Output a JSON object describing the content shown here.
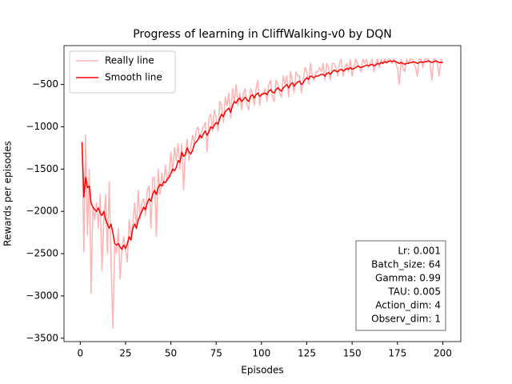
{
  "chart_data": {
    "type": "line",
    "title": "Progress of learning in CliffWalking-v0 by DQN",
    "x_label": "Episodes",
    "y_label": "Rewards per episodes",
    "xlim": [
      -8.95,
      209.95
    ],
    "ylim": [
      -3540,
      -40
    ],
    "xticks": [
      0,
      25,
      50,
      75,
      100,
      125,
      150,
      175,
      200
    ],
    "yticks": [
      {
        "value": -3500,
        "label": "−3500"
      },
      {
        "value": -3000,
        "label": "−3000"
      },
      {
        "value": -2500,
        "label": "−2500"
      },
      {
        "value": -2000,
        "label": "−2000"
      },
      {
        "value": -1500,
        "label": "−1500"
      },
      {
        "value": -1000,
        "label": "−1000"
      },
      {
        "value": -500,
        "label": "−500"
      }
    ],
    "legend_position": "upper left",
    "annotation": [
      "Lr: 0.001",
      "Batch_size: 64",
      "Gamma: 0.99",
      "TAU: 0.005",
      "Action_dim: 4",
      "Observ_dim: 1"
    ],
    "x": [
      1,
      2,
      3,
      4,
      5,
      6,
      7,
      8,
      9,
      10,
      11,
      12,
      13,
      14,
      15,
      16,
      17,
      18,
      19,
      20,
      21,
      22,
      23,
      24,
      25,
      26,
      27,
      28,
      29,
      30,
      31,
      32,
      33,
      34,
      35,
      36,
      37,
      38,
      39,
      40,
      41,
      42,
      43,
      44,
      45,
      46,
      47,
      48,
      49,
      50,
      51,
      52,
      53,
      54,
      55,
      56,
      57,
      58,
      59,
      60,
      61,
      62,
      63,
      64,
      65,
      66,
      67,
      68,
      69,
      70,
      71,
      72,
      73,
      74,
      75,
      76,
      77,
      78,
      79,
      80,
      81,
      82,
      83,
      84,
      85,
      86,
      87,
      88,
      89,
      90,
      91,
      92,
      93,
      94,
      95,
      96,
      97,
      98,
      99,
      100,
      101,
      102,
      103,
      104,
      105,
      106,
      107,
      108,
      109,
      110,
      111,
      112,
      113,
      114,
      115,
      116,
      117,
      118,
      119,
      120,
      121,
      122,
      123,
      124,
      125,
      126,
      127,
      128,
      129,
      130,
      131,
      132,
      133,
      134,
      135,
      136,
      137,
      138,
      139,
      140,
      141,
      142,
      143,
      144,
      145,
      146,
      147,
      148,
      149,
      150,
      151,
      152,
      153,
      154,
      155,
      156,
      157,
      158,
      159,
      160,
      161,
      162,
      163,
      164,
      165,
      166,
      167,
      168,
      169,
      170,
      171,
      172,
      173,
      174,
      175,
      176,
      177,
      178,
      179,
      180,
      181,
      182,
      183,
      184,
      185,
      186,
      187,
      188,
      189,
      190,
      191,
      192,
      193,
      194,
      195,
      196,
      197,
      198,
      199,
      200
    ],
    "series": [
      {
        "name": "Really line",
        "color": "#ffb3b3",
        "values": [
          -1180,
          -2480,
          -1100,
          -2280,
          -1500,
          -2970,
          -1950,
          -2100,
          -1900,
          -2200,
          -1800,
          -2700,
          -2100,
          -1800,
          -2500,
          -1650,
          -2600,
          -3380,
          -2400,
          -2500,
          -2200,
          -2800,
          -2450,
          -2300,
          -2450,
          -2600,
          -2100,
          -2300,
          -2150,
          -1900,
          -2200,
          -1750,
          -2100,
          -1900,
          -1850,
          -2050,
          -1750,
          -1700,
          -2200,
          -1600,
          -1600,
          -2300,
          -1500,
          -1800,
          -1550,
          -1700,
          -1450,
          -1650,
          -1550,
          -1300,
          -1550,
          -1250,
          -1400,
          -1200,
          -1500,
          -1200,
          -1750,
          -1300,
          -1150,
          -1400,
          -1250,
          -1100,
          -1200,
          -1050,
          -1000,
          -1150,
          -1050,
          -1000,
          -950,
          -1300,
          -900,
          -850,
          -1050,
          -800,
          -900,
          -1050,
          -700,
          -750,
          -950,
          -650,
          -750,
          -600,
          -900,
          -550,
          -700,
          -500,
          -750,
          -600,
          -800,
          -600,
          -550,
          -750,
          -800,
          -550,
          -600,
          -750,
          -550,
          -450,
          -750,
          -600,
          -600,
          -550,
          -700,
          -500,
          -450,
          -650,
          -700,
          -450,
          -500,
          -600,
          -650,
          -400,
          -500,
          -400,
          -650,
          -350,
          -450,
          -600,
          -350,
          -400,
          -400,
          -600,
          -450,
          -300,
          -350,
          -500,
          -250,
          -400,
          -450,
          -350,
          -350,
          -300,
          -350,
          -250,
          -450,
          -250,
          -300,
          -450,
          -250,
          -250,
          -300,
          -400,
          -250,
          -200,
          -400,
          -300,
          -250,
          -350,
          -200,
          -400,
          -300,
          -200,
          -250,
          -300,
          -350,
          -200,
          -250,
          -200,
          -300,
          -250,
          -200,
          -350,
          -250,
          -200,
          -300,
          -200,
          -250,
          -200,
          -250,
          -200,
          -200,
          -250,
          -200,
          -250,
          -300,
          -500,
          -200,
          -300,
          -350,
          -200,
          -250,
          -200,
          -200,
          -250,
          -300,
          -400,
          -200,
          -200,
          -300,
          -200,
          -200,
          -200,
          -250,
          -450,
          -200,
          -200,
          -250,
          -400,
          -200,
          -250
        ]
      },
      {
        "name": "Smooth line",
        "color": "#ff0000",
        "values": [
          -1180,
          -1830,
          -1600,
          -1720,
          -1700,
          -1900,
          -1950,
          -1980,
          -2000,
          -1960,
          -2020,
          -2050,
          -2000,
          -2100,
          -2150,
          -2200,
          -2150,
          -2250,
          -2380,
          -2400,
          -2380,
          -2420,
          -2450,
          -2400,
          -2440,
          -2380,
          -2300,
          -2340,
          -2200,
          -2150,
          -2200,
          -2100,
          -2050,
          -2000,
          -1950,
          -1980,
          -1900,
          -1850,
          -1880,
          -1800,
          -1750,
          -1800,
          -1720,
          -1680,
          -1700,
          -1650,
          -1660,
          -1620,
          -1600,
          -1550,
          -1500,
          -1520,
          -1480,
          -1400,
          -1420,
          -1300,
          -1350,
          -1330,
          -1250,
          -1300,
          -1320,
          -1280,
          -1200,
          -1180,
          -1150,
          -1100,
          -1130,
          -1080,
          -1050,
          -1100,
          -1060,
          -1000,
          -1020,
          -980,
          -950,
          -970,
          -900,
          -850,
          -880,
          -820,
          -800,
          -780,
          -830,
          -750,
          -700,
          -720,
          -680,
          -660,
          -700,
          -680,
          -650,
          -680,
          -700,
          -640,
          -620,
          -660,
          -620,
          -600,
          -640,
          -620,
          -610,
          -600,
          -620,
          -580,
          -560,
          -590,
          -600,
          -560,
          -540,
          -560,
          -580,
          -540,
          -520,
          -500,
          -540,
          -500,
          -480,
          -520,
          -490,
          -470,
          -460,
          -500,
          -480,
          -440,
          -420,
          -440,
          -400,
          -410,
          -420,
          -400,
          -400,
          -390,
          -380,
          -380,
          -400,
          -370,
          -360,
          -380,
          -350,
          -330,
          -340,
          -350,
          -330,
          -320,
          -340,
          -330,
          -310,
          -320,
          -300,
          -320,
          -310,
          -300,
          -280,
          -290,
          -300,
          -290,
          -280,
          -270,
          -280,
          -270,
          -260,
          -280,
          -270,
          -250,
          -260,
          -240,
          -250,
          -230,
          -240,
          -230,
          -220,
          -230,
          -220,
          -230,
          -240,
          -250,
          -240,
          -250,
          -260,
          -250,
          -250,
          -240,
          -240,
          -230,
          -240,
          -250,
          -240,
          -230,
          -240,
          -230,
          -230,
          -220,
          -230,
          -240,
          -230,
          -220,
          -230,
          -240,
          -240,
          -240
        ]
      }
    ]
  }
}
